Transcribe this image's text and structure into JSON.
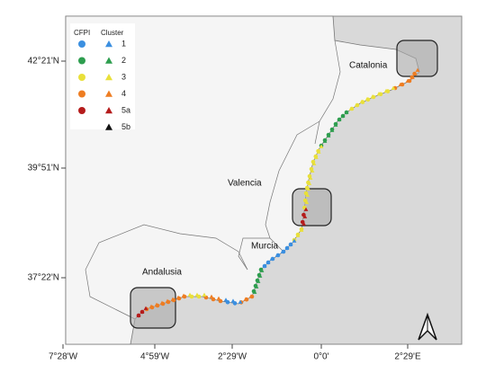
{
  "legend": {
    "cfpi_title": "CFPI",
    "cluster_title": "Cluster",
    "items": [
      {
        "label": "1",
        "color": "#3b8fe0"
      },
      {
        "label": "2",
        "color": "#2e9e4f"
      },
      {
        "label": "3",
        "color": "#e9e03a"
      },
      {
        "label": "4",
        "color": "#ee7d22"
      },
      {
        "label": "5a",
        "color": "#b51c1c"
      },
      {
        "label": "5b",
        "color": "#111111"
      }
    ]
  },
  "regions": [
    "Catalonia",
    "Valencia",
    "Murcia",
    "Andalusia"
  ],
  "latitude_labels": [
    "42°21'N",
    "39°51'N",
    "37°22'N"
  ],
  "longitude_labels": [
    "7°28'W",
    "4°59'W",
    "2°29'W",
    "0°0'",
    "2°29'E"
  ]
}
